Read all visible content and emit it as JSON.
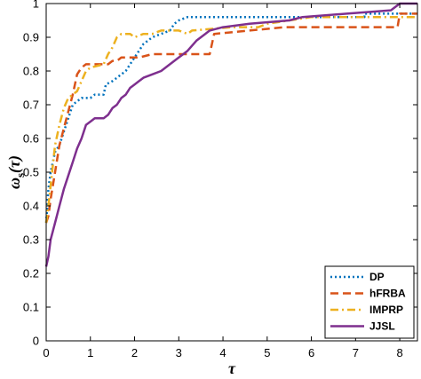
{
  "chart_data": {
    "type": "line",
    "xlabel": "τ",
    "ylabel_main": "ω",
    "ylabel_sub": "s",
    "ylabel_arg": "(τ)",
    "xlim": [
      0,
      8.4
    ],
    "ylim": [
      0,
      1
    ],
    "xticks": [
      0,
      1,
      2,
      3,
      4,
      5,
      6,
      7,
      8
    ],
    "yticks": [
      0,
      0.1,
      0.2,
      0.3,
      0.4,
      0.5,
      0.6,
      0.7,
      0.8,
      0.9,
      1
    ],
    "ytick_labels": [
      "0",
      "0.1",
      "0.2",
      "0.3",
      "0.4",
      "0.5",
      "0.6",
      "0.7",
      "0.8",
      "0.9",
      "1"
    ],
    "grid": false,
    "legend_position": "bottom-right",
    "series": [
      {
        "name": "DP",
        "color": "#0072BD",
        "style": "dotted",
        "points": [
          [
            0,
            0.35
          ],
          [
            0.05,
            0.45
          ],
          [
            0.1,
            0.5
          ],
          [
            0.15,
            0.53
          ],
          [
            0.2,
            0.56
          ],
          [
            0.3,
            0.58
          ],
          [
            0.35,
            0.6
          ],
          [
            0.4,
            0.62
          ],
          [
            0.45,
            0.64
          ],
          [
            0.5,
            0.66
          ],
          [
            0.55,
            0.68
          ],
          [
            0.6,
            0.7
          ],
          [
            0.7,
            0.71
          ],
          [
            0.8,
            0.72
          ],
          [
            0.9,
            0.72
          ],
          [
            1.0,
            0.72
          ],
          [
            1.1,
            0.73
          ],
          [
            1.2,
            0.73
          ],
          [
            1.3,
            0.73
          ],
          [
            1.35,
            0.76
          ],
          [
            1.5,
            0.77
          ],
          [
            1.6,
            0.78
          ],
          [
            1.7,
            0.79
          ],
          [
            1.8,
            0.8
          ],
          [
            1.9,
            0.82
          ],
          [
            2.0,
            0.84
          ],
          [
            2.1,
            0.86
          ],
          [
            2.2,
            0.88
          ],
          [
            2.3,
            0.89
          ],
          [
            2.4,
            0.9
          ],
          [
            2.6,
            0.91
          ],
          [
            2.8,
            0.92
          ],
          [
            2.9,
            0.94
          ],
          [
            3.0,
            0.95
          ],
          [
            3.2,
            0.96
          ],
          [
            5.0,
            0.96
          ],
          [
            7.2,
            0.96
          ],
          [
            7.2,
            0.97
          ],
          [
            8.4,
            0.97
          ]
        ]
      },
      {
        "name": "hFRBA",
        "color": "#D95319",
        "style": "dashed",
        "points": [
          [
            0,
            0.35
          ],
          [
            0.05,
            0.37
          ],
          [
            0.1,
            0.42
          ],
          [
            0.2,
            0.5
          ],
          [
            0.3,
            0.58
          ],
          [
            0.4,
            0.63
          ],
          [
            0.5,
            0.68
          ],
          [
            0.6,
            0.73
          ],
          [
            0.7,
            0.79
          ],
          [
            0.8,
            0.81
          ],
          [
            0.9,
            0.82
          ],
          [
            1.0,
            0.82
          ],
          [
            1.2,
            0.82
          ],
          [
            1.4,
            0.82
          ],
          [
            1.5,
            0.83
          ],
          [
            1.6,
            0.83
          ],
          [
            1.7,
            0.84
          ],
          [
            2.1,
            0.84
          ],
          [
            2.4,
            0.85
          ],
          [
            3.7,
            0.85
          ],
          [
            3.75,
            0.88
          ],
          [
            3.8,
            0.91
          ],
          [
            4.6,
            0.92
          ],
          [
            5.4,
            0.93
          ],
          [
            6.0,
            0.93
          ],
          [
            7.5,
            0.93
          ],
          [
            7.95,
            0.93
          ],
          [
            8.0,
            0.97
          ],
          [
            8.4,
            0.97
          ]
        ]
      },
      {
        "name": "IMPRP",
        "color": "#EDB120",
        "style": "dashdot",
        "points": [
          [
            0,
            0.35
          ],
          [
            0.05,
            0.4
          ],
          [
            0.1,
            0.46
          ],
          [
            0.2,
            0.58
          ],
          [
            0.3,
            0.64
          ],
          [
            0.4,
            0.69
          ],
          [
            0.5,
            0.72
          ],
          [
            0.6,
            0.73
          ],
          [
            0.7,
            0.74
          ],
          [
            0.8,
            0.77
          ],
          [
            0.9,
            0.8
          ],
          [
            1.0,
            0.81
          ],
          [
            1.3,
            0.82
          ],
          [
            1.4,
            0.85
          ],
          [
            1.5,
            0.87
          ],
          [
            1.6,
            0.9
          ],
          [
            1.7,
            0.91
          ],
          [
            1.9,
            0.91
          ],
          [
            2.0,
            0.9
          ],
          [
            2.2,
            0.91
          ],
          [
            2.4,
            0.91
          ],
          [
            2.6,
            0.92
          ],
          [
            3.0,
            0.92
          ],
          [
            3.2,
            0.91
          ],
          [
            3.3,
            0.92
          ],
          [
            4.2,
            0.93
          ],
          [
            4.8,
            0.93
          ],
          [
            5.0,
            0.94
          ],
          [
            5.5,
            0.95
          ],
          [
            6.0,
            0.96
          ],
          [
            8.4,
            0.96
          ]
        ]
      },
      {
        "name": "JJSL",
        "color": "#7E2F8E",
        "style": "solid",
        "points": [
          [
            0,
            0.22
          ],
          [
            0.05,
            0.25
          ],
          [
            0.1,
            0.3
          ],
          [
            0.2,
            0.35
          ],
          [
            0.3,
            0.4
          ],
          [
            0.4,
            0.45
          ],
          [
            0.5,
            0.49
          ],
          [
            0.6,
            0.53
          ],
          [
            0.7,
            0.57
          ],
          [
            0.8,
            0.6
          ],
          [
            0.9,
            0.64
          ],
          [
            1.0,
            0.65
          ],
          [
            1.1,
            0.66
          ],
          [
            1.3,
            0.66
          ],
          [
            1.4,
            0.67
          ],
          [
            1.5,
            0.69
          ],
          [
            1.6,
            0.7
          ],
          [
            1.7,
            0.72
          ],
          [
            1.8,
            0.73
          ],
          [
            1.9,
            0.75
          ],
          [
            2.0,
            0.76
          ],
          [
            2.1,
            0.77
          ],
          [
            2.2,
            0.78
          ],
          [
            2.4,
            0.79
          ],
          [
            2.6,
            0.8
          ],
          [
            2.8,
            0.82
          ],
          [
            3.0,
            0.84
          ],
          [
            3.1,
            0.85
          ],
          [
            3.2,
            0.86
          ],
          [
            3.4,
            0.89
          ],
          [
            3.6,
            0.91
          ],
          [
            3.7,
            0.92
          ],
          [
            4.0,
            0.93
          ],
          [
            4.6,
            0.94
          ],
          [
            5.5,
            0.95
          ],
          [
            5.8,
            0.96
          ],
          [
            6.8,
            0.97
          ],
          [
            7.8,
            0.98
          ],
          [
            8.0,
            1.0
          ],
          [
            8.4,
            1.0
          ]
        ]
      }
    ]
  }
}
